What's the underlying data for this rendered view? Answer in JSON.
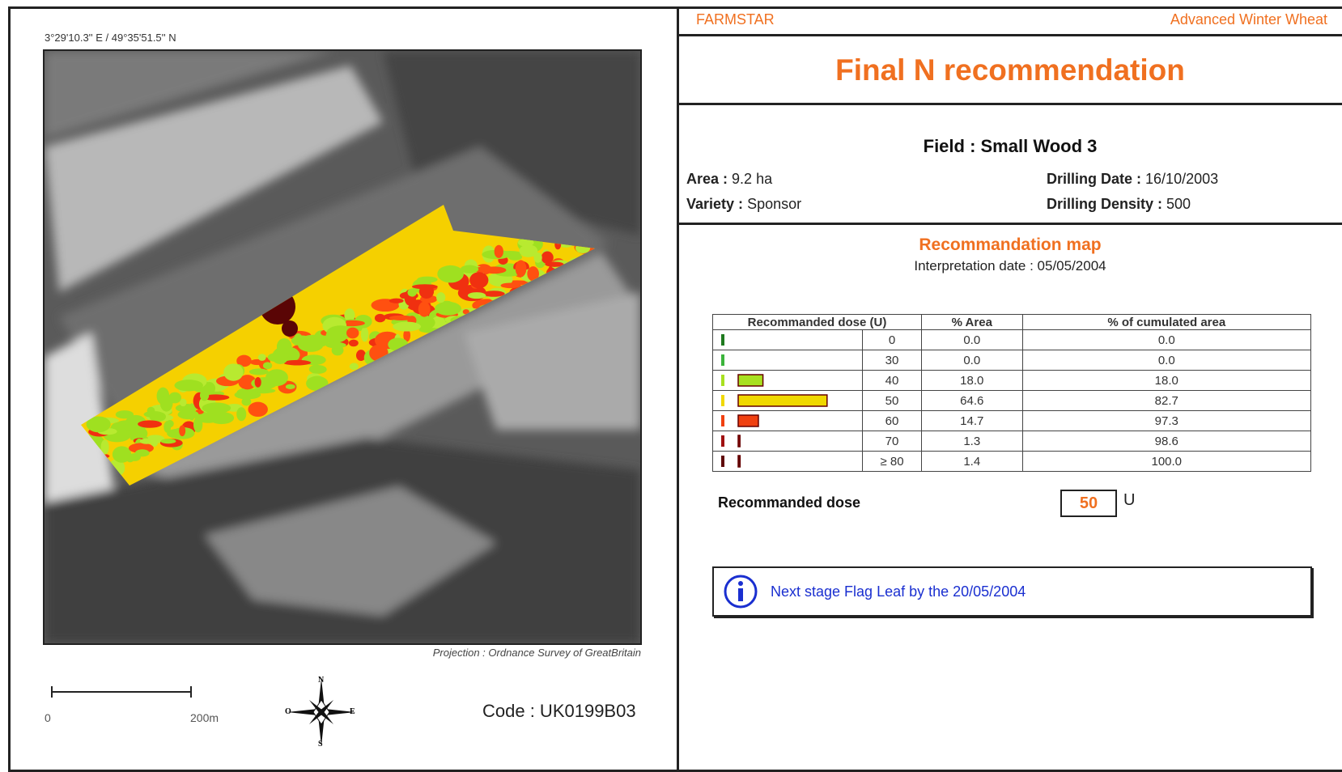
{
  "header": {
    "brand": "FARMSTAR",
    "crop": "Advanced Winter Wheat",
    "title": "Final N recommendation"
  },
  "field": {
    "name": "Field : Small Wood 3",
    "area_label": "Area :",
    "area": "9.2 ha",
    "variety_label": "Variety :",
    "variety": "Sponsor",
    "drilling_date_label": "Drilling Date :",
    "drilling_date": "16/10/2003",
    "drilling_density_label": "Drilling Density :",
    "drilling_density": "500"
  },
  "map": {
    "coordinates": "3°29'10.3'' E / 49°35'51.5'' N",
    "projection": "Projection : Ordnance Survey of GreatBritain",
    "scale_start": "0",
    "scale_end": "200m",
    "compass": {
      "n": "N",
      "w": "O",
      "e": "E",
      "s": "S"
    },
    "code": "Code : UK0199B03"
  },
  "recommendation": {
    "title": "Recommandation map",
    "interpretation": "Interpretation date : 05/05/2004",
    "table": {
      "headers": [
        "Recommanded dose (U)",
        "% Area",
        "% of cumulated area"
      ],
      "rows": [
        [
          "0",
          "0.0",
          "0.0"
        ],
        [
          "30",
          "0.0",
          "0.0"
        ],
        [
          "40",
          "18.0",
          "18.0"
        ],
        [
          "50",
          "64.6",
          "82.7"
        ],
        [
          "60",
          "14.7",
          "97.3"
        ],
        [
          "70",
          "1.3",
          "98.6"
        ],
        [
          "≥ 80",
          "1.4",
          "100.0"
        ]
      ],
      "colors": [
        "#1f7a1f",
        "#3cb43c",
        "#a8e020",
        "#f0d800",
        "#f04010",
        "#a01010",
        "#600a0a"
      ]
    },
    "dose_label": "Recommanded dose",
    "dose": "50",
    "unit": "U"
  },
  "note": "Next stage Flag Leaf by the 20/05/2004"
}
